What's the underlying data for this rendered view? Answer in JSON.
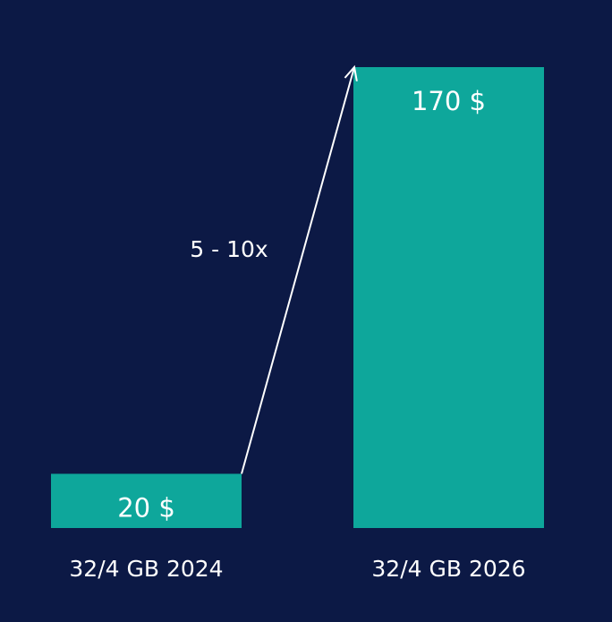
{
  "chart_data": {
    "type": "bar",
    "categories": [
      "32/4 GB 2024",
      "32/4 GB 2026"
    ],
    "values": [
      20,
      170
    ],
    "value_labels": [
      "20 $",
      "170 $"
    ],
    "color": "#0ea79b",
    "annotation": "5 - 10x"
  }
}
